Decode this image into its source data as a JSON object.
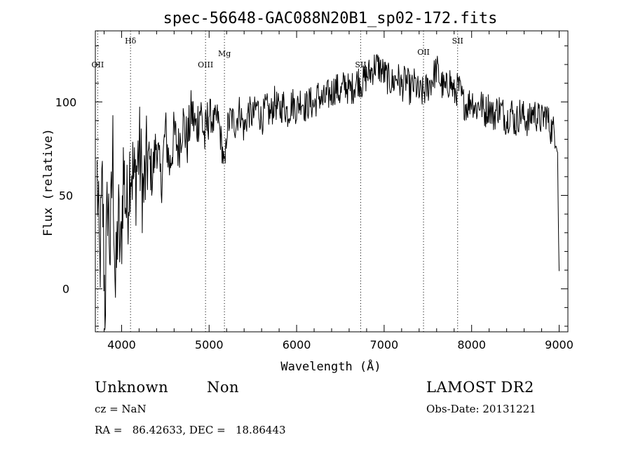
{
  "chart_data": {
    "type": "line",
    "title": "spec-56648-GAC088N20B1_sp02-172.fits",
    "xlabel": "Wavelength (Å)",
    "ylabel": "Flux (relative)",
    "xlim": [
      3700,
      9100
    ],
    "ylim": [
      -23,
      138
    ],
    "x_ticks": [
      4000,
      5000,
      6000,
      7000,
      8000,
      9000
    ],
    "y_ticks": [
      0,
      50,
      100
    ],
    "grid": false,
    "line_color": "#000000",
    "spectral_lines": [
      {
        "label": "OII",
        "x": 3727
      },
      {
        "label": "Hδ",
        "x": 4102
      },
      {
        "label": "OIII",
        "x": 4959
      },
      {
        "label": "Mg",
        "x": 5175
      },
      {
        "label": "SII",
        "x": 6732
      },
      {
        "label": "OII",
        "x": 7450
      },
      {
        "label": "SII",
        "x": 7840
      }
    ],
    "series": [
      {
        "x": [
          3720,
          3750,
          3780,
          3810,
          3840,
          3870,
          3900,
          3930,
          3960,
          3990,
          4020,
          4060,
          4100,
          4150,
          4200,
          4250,
          4300,
          4350,
          4400,
          4450,
          4500,
          4550,
          4600,
          4650,
          4700,
          4750,
          4800,
          4850,
          4900,
          4950,
          5000,
          5050,
          5100,
          5150,
          5180,
          5200,
          5250,
          5300,
          5350,
          5400,
          5450,
          5500,
          5550,
          5600,
          5650,
          5700,
          5750,
          5800,
          5850,
          5900,
          5950,
          6000,
          6050,
          6100,
          6150,
          6200,
          6250,
          6300,
          6350,
          6400,
          6450,
          6500,
          6550,
          6600,
          6650,
          6700,
          6750,
          6800,
          6850,
          6900,
          6950,
          7000,
          7050,
          7100,
          7150,
          7200,
          7250,
          7300,
          7350,
          7400,
          7450,
          7500,
          7550,
          7600,
          7650,
          7700,
          7750,
          7800,
          7850,
          7900,
          7950,
          8000,
          8050,
          8100,
          8150,
          8200,
          8250,
          8300,
          8350,
          8400,
          8450,
          8500,
          8550,
          8600,
          8650,
          8700,
          8750,
          8800,
          8850,
          8900,
          8950,
          8980,
          9000
        ],
        "y": [
          60,
          10,
          55,
          -10,
          50,
          20,
          75,
          -5,
          40,
          15,
          65,
          40,
          70,
          55,
          75,
          50,
          72,
          60,
          80,
          55,
          85,
          65,
          83,
          75,
          90,
          78,
          95,
          85,
          97,
          80,
          95,
          88,
          92,
          75,
          62,
          85,
          92,
          88,
          96,
          85,
          95,
          92,
          98,
          90,
          97,
          93,
          100,
          95,
          99,
          94,
          100,
          96,
          102,
          97,
          100,
          98,
          104,
          100,
          103,
          105,
          108,
          104,
          110,
          106,
          108,
          112,
          110,
          114,
          116,
          120,
          118,
          115,
          112,
          110,
          114,
          108,
          112,
          106,
          110,
          104,
          105,
          108,
          112,
          118,
          110,
          106,
          112,
          104,
          108,
          100,
          98,
          102,
          96,
          100,
          94,
          98,
          92,
          97,
          95,
          90,
          96,
          88,
          94,
          92,
          89,
          95,
          92,
          90,
          94,
          86,
          84,
          80,
          5
        ]
      }
    ]
  },
  "info": {
    "class_text": "Unknown",
    "subclass_text": "Non",
    "cz_text": "cz = NaN",
    "coords_text": "RA =   86.42633, DEC =   18.86443",
    "survey_text": "LAMOST DR2",
    "obsdate_text": "Obs-Date: 20131221"
  }
}
